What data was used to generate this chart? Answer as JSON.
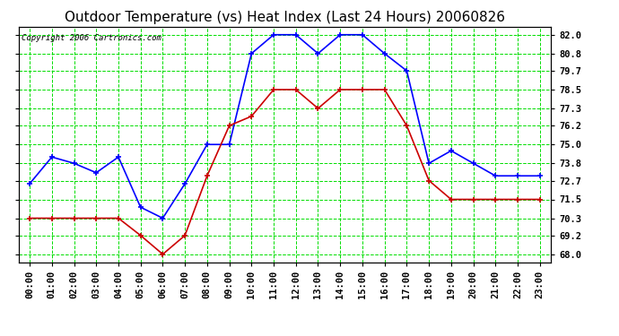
{
  "title": "Outdoor Temperature (vs) Heat Index (Last 24 Hours) 20060826",
  "copyright": "Copyright 2006 Cartronics.com",
  "x_labels": [
    "00:00",
    "01:00",
    "02:00",
    "03:00",
    "04:00",
    "05:00",
    "06:00",
    "07:00",
    "08:00",
    "09:00",
    "10:00",
    "11:00",
    "12:00",
    "13:00",
    "14:00",
    "15:00",
    "16:00",
    "17:00",
    "18:00",
    "19:00",
    "20:00",
    "21:00",
    "22:00",
    "23:00"
  ],
  "blue_data": [
    72.5,
    74.2,
    73.8,
    73.2,
    74.2,
    71.0,
    70.3,
    72.5,
    75.0,
    75.0,
    80.8,
    82.0,
    82.0,
    80.8,
    82.0,
    82.0,
    80.8,
    79.7,
    73.8,
    74.6,
    73.8,
    73.0,
    73.0,
    73.0
  ],
  "red_data": [
    70.3,
    70.3,
    70.3,
    70.3,
    70.3,
    69.2,
    68.0,
    69.2,
    73.0,
    76.2,
    76.8,
    78.5,
    78.5,
    77.3,
    78.5,
    78.5,
    78.5,
    76.2,
    72.7,
    71.5,
    71.5,
    71.5,
    71.5,
    71.5
  ],
  "yticks": [
    68.0,
    69.2,
    70.3,
    71.5,
    72.7,
    73.8,
    75.0,
    76.2,
    77.3,
    78.5,
    79.7,
    80.8,
    82.0
  ],
  "ylim": [
    67.5,
    82.5
  ],
  "bg_color": "#ffffff",
  "plot_bg_color": "#ffffff",
  "grid_color": "#00dd00",
  "blue_color": "#0000ff",
  "red_color": "#cc0000",
  "title_color": "#000000",
  "title_fontsize": 11,
  "copyright_fontsize": 6.5,
  "tick_fontsize": 7.5,
  "linewidth": 1.2,
  "markersize": 4
}
